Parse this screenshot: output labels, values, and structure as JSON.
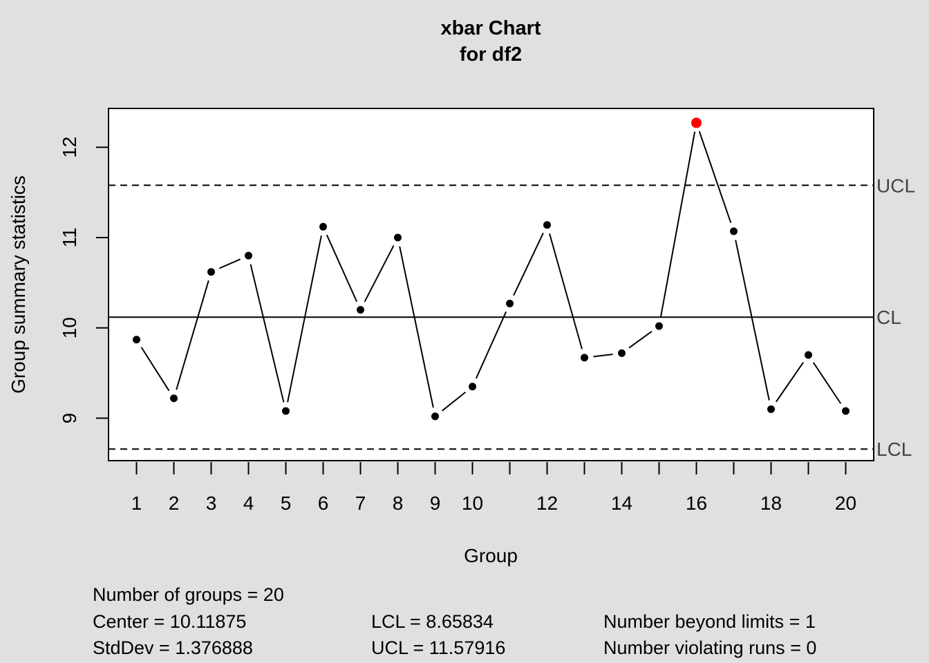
{
  "chart_data": {
    "type": "line",
    "title_line1": "xbar Chart",
    "title_line2": "for df2",
    "xlabel": "Group",
    "ylabel": "Group summary statistics",
    "x": [
      1,
      2,
      3,
      4,
      5,
      6,
      7,
      8,
      9,
      10,
      11,
      12,
      13,
      14,
      15,
      16,
      17,
      18,
      19,
      20
    ],
    "values": [
      9.87,
      9.22,
      10.62,
      10.8,
      9.08,
      11.12,
      10.2,
      11.0,
      9.02,
      9.35,
      10.27,
      11.14,
      9.67,
      9.72,
      10.02,
      12.27,
      11.07,
      9.1,
      9.7,
      9.08
    ],
    "x_ticks": [
      1,
      2,
      3,
      4,
      5,
      6,
      7,
      8,
      9,
      10,
      11,
      12,
      13,
      14,
      15,
      16,
      17,
      18,
      19,
      20
    ],
    "x_tick_labels": [
      "1",
      "2",
      "3",
      "4",
      "5",
      "6",
      "7",
      "8",
      "9",
      "10",
      "",
      "12",
      "",
      "14",
      "",
      "16",
      "",
      "18",
      "",
      "20"
    ],
    "y_ticks": [
      9,
      10,
      11,
      12
    ],
    "y_tick_labels": [
      "9",
      "10",
      "11",
      "12"
    ],
    "xlim": [
      0.25,
      20.75
    ],
    "ylim": [
      8.53,
      12.43
    ],
    "center": 10.11875,
    "lcl": 8.65834,
    "ucl": 11.57916,
    "limit_labels": {
      "ucl": "UCL",
      "cl": "CL",
      "lcl": "LCL"
    },
    "point_color": "#000000",
    "out_of_control_color": "#ff0000",
    "grid": false
  },
  "stats": {
    "groups": "Number of groups = 20",
    "center": "Center = 10.11875",
    "stddev": "StdDev = 1.376888",
    "lcl": "LCL = 8.65834",
    "ucl": "UCL = 11.57916",
    "beyond": "Number beyond limits = 1",
    "violating": "Number violating runs = 0"
  }
}
